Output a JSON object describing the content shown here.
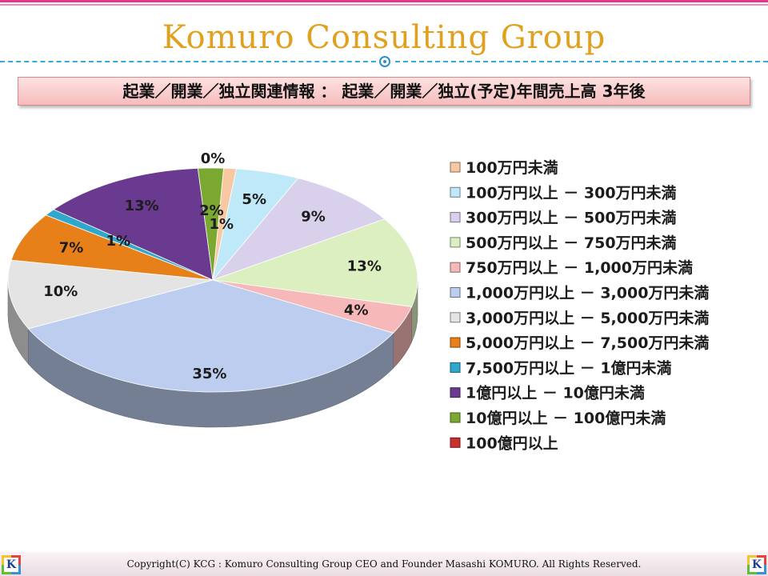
{
  "header": {
    "brand": "Komuro Consulting Group",
    "subtitle": "起業／開業／独立関連情報 ： 起業／開業／独立(予定)年間売上高 3年後"
  },
  "chart_data": {
    "type": "pie",
    "categories": [
      "100万円未満",
      "100万円以上 － 300万円未満",
      "300万円以上 － 500万円未満",
      "500万円以上 － 750万円未満",
      "750万円以上 － 1,000万円未満",
      "1,000万円以上 － 3,000万円未満",
      "3,000万円以上 － 5,000万円未満",
      "5,000万円以上 － 7,500万円未満",
      "7,500万円以上 － 1億円未満",
      "1億円以上 － 10億円未満",
      "10億円以上 － 100億円未満",
      "100億円以上"
    ],
    "values": [
      1,
      5,
      9,
      13,
      4,
      35,
      10,
      7,
      1,
      13,
      2,
      0
    ],
    "data_labels": [
      "1%",
      "5%",
      "9%",
      "13%",
      "4%",
      "35%",
      "10%",
      "7%",
      "1%",
      "13%",
      "2%",
      "0%"
    ],
    "colors": [
      "#f8c8a2",
      "#bfe9f8",
      "#d9d0ec",
      "#dbefc0",
      "#f6b8b8",
      "#bccdef",
      "#e4e4e4",
      "#e8801a",
      "#30a8cc",
      "#6a3a90",
      "#7aa830",
      "#c83030"
    ],
    "legend_position": "right"
  },
  "footer": {
    "copyright": "Copyright(C) KCG : Komuro Consulting Group CEO and Founder Masashi KOMURO. All Rights Reserved.",
    "logo_letter": "K"
  }
}
